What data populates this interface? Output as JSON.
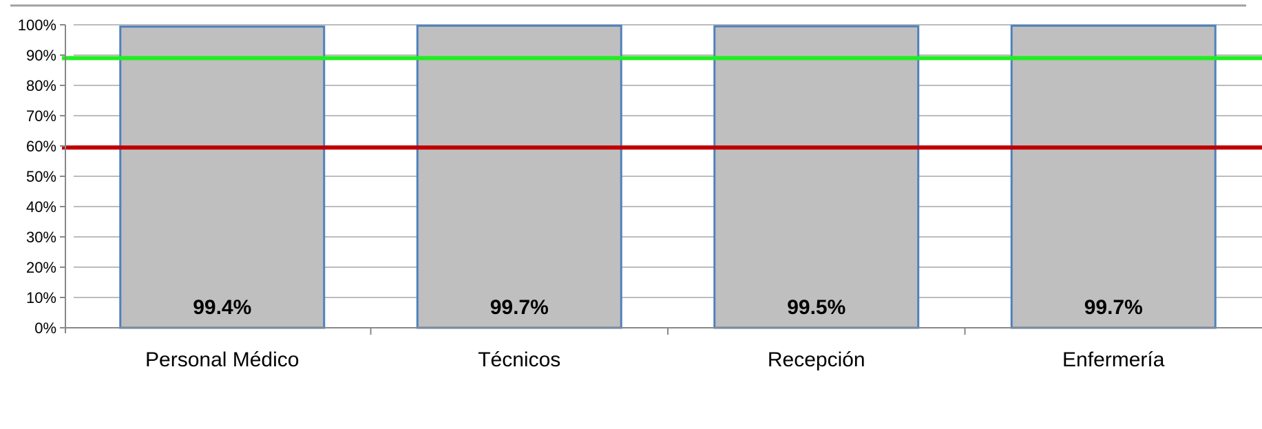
{
  "chart_data": {
    "type": "bar",
    "categories": [
      "Personal Médico",
      "Técnicos",
      "Recepción",
      "Enfermería"
    ],
    "values": [
      99.4,
      99.7,
      99.5,
      99.7
    ],
    "data_labels": [
      "99.4%",
      "99.7%",
      "99.5%",
      "99.7%"
    ],
    "ylim": [
      0,
      100
    ],
    "y_ticks": [
      0,
      10,
      20,
      30,
      40,
      50,
      60,
      70,
      80,
      90,
      100
    ],
    "y_tick_labels": [
      "0%",
      "10%",
      "20%",
      "30%",
      "40%",
      "50%",
      "60%",
      "70%",
      "80%",
      "90%",
      "100%"
    ],
    "grid": true,
    "reference_lines": [
      {
        "value": 89,
        "color": "#22ee22"
      },
      {
        "value": 59.5,
        "color": "#c00000"
      }
    ],
    "colors": {
      "bar_fill": "#bfbfbf",
      "bar_stroke": "#4f81bd",
      "grid": "#a6a6a6",
      "axis": "#888888",
      "top_rule": "#a0a0a0"
    }
  }
}
